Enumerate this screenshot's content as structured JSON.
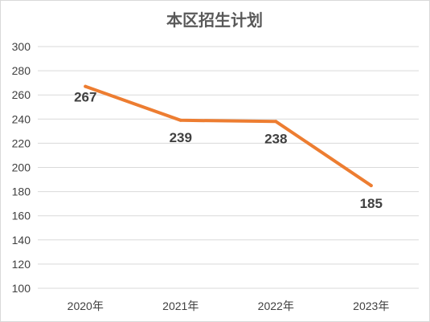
{
  "chart_data": {
    "type": "line",
    "title": "本区招生计划",
    "categories": [
      "2020年",
      "2021年",
      "2022年",
      "2023年"
    ],
    "series": [
      {
        "values": [
          267,
          239,
          238,
          185
        ],
        "color": "#ED7D31"
      }
    ],
    "data_labels": [
      "267",
      "239",
      "238",
      "185"
    ],
    "ylim": [
      100,
      300
    ],
    "yticks": [
      100,
      120,
      140,
      160,
      180,
      200,
      220,
      240,
      260,
      280,
      300
    ],
    "ytick_labels": [
      "100",
      "120",
      "140",
      "160",
      "180",
      "200",
      "220",
      "240",
      "260",
      "280",
      "300"
    ],
    "grid": true,
    "legend": "none",
    "xlabel": "",
    "ylabel": ""
  }
}
